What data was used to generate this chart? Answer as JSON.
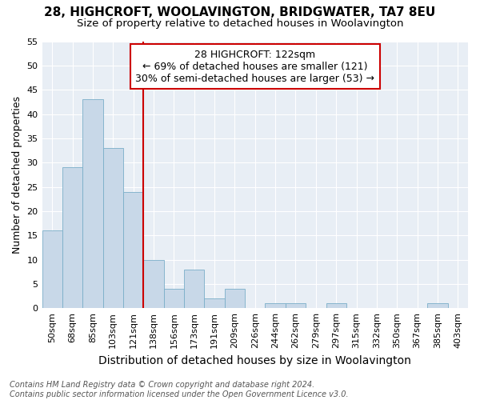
{
  "title": "28, HIGHCROFT, WOOLAVINGTON, BRIDGWATER, TA7 8EU",
  "subtitle": "Size of property relative to detached houses in Woolavington",
  "xlabel": "Distribution of detached houses by size in Woolavington",
  "ylabel": "Number of detached properties",
  "categories": [
    "50sqm",
    "68sqm",
    "85sqm",
    "103sqm",
    "121sqm",
    "138sqm",
    "156sqm",
    "173sqm",
    "191sqm",
    "209sqm",
    "226sqm",
    "244sqm",
    "262sqm",
    "279sqm",
    "297sqm",
    "315sqm",
    "332sqm",
    "350sqm",
    "367sqm",
    "385sqm",
    "403sqm"
  ],
  "values": [
    16,
    29,
    43,
    33,
    24,
    10,
    4,
    8,
    2,
    4,
    0,
    1,
    1,
    0,
    1,
    0,
    0,
    0,
    0,
    1,
    0
  ],
  "bar_color": "#c8d8e8",
  "bar_edge_color": "#7aaec8",
  "highlight_line_color": "#cc0000",
  "highlight_bar_index": 4,
  "annotation_text": "28 HIGHCROFT: 122sqm\n← 69% of detached houses are smaller (121)\n30% of semi-detached houses are larger (53) →",
  "annotation_box_edgecolor": "#cc0000",
  "background_color": "#e8eef5",
  "ylim": [
    0,
    55
  ],
  "yticks": [
    0,
    5,
    10,
    15,
    20,
    25,
    30,
    35,
    40,
    45,
    50,
    55
  ],
  "footnote": "Contains HM Land Registry data © Crown copyright and database right 2024.\nContains public sector information licensed under the Open Government Licence v3.0.",
  "title_fontsize": 11,
  "subtitle_fontsize": 9.5,
  "xlabel_fontsize": 10,
  "ylabel_fontsize": 9,
  "tick_fontsize": 8,
  "annotation_fontsize": 9,
  "footnote_fontsize": 7
}
